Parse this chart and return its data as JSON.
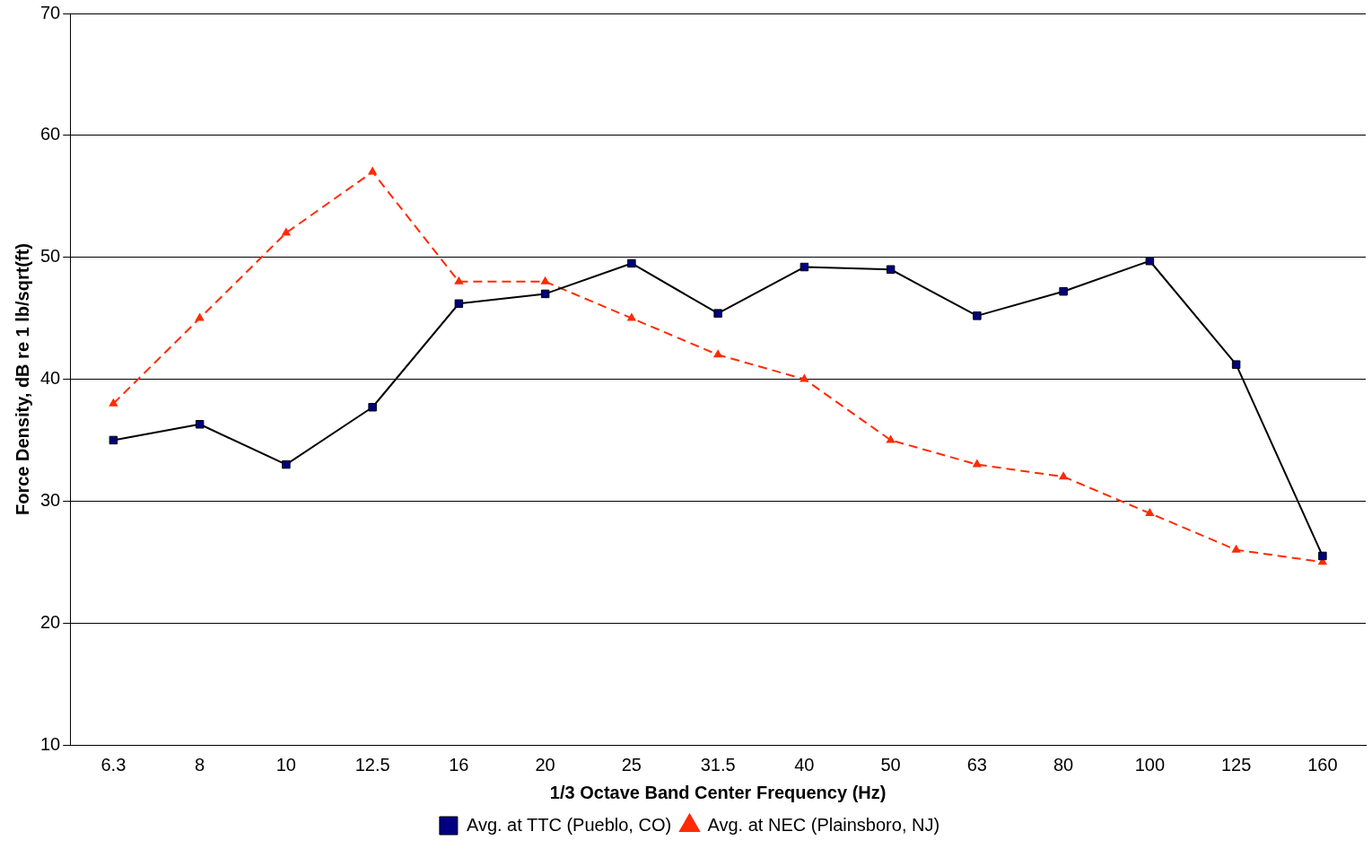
{
  "chart_data": {
    "type": "line",
    "xlabel": "1/3 Octave Band Center Frequency (Hz)",
    "ylabel": "Force Density, dB re 1 lb/sqrt(ft)",
    "categories": [
      "6.3",
      "8",
      "10",
      "12.5",
      "16",
      "20",
      "25",
      "31.5",
      "40",
      "50",
      "63",
      "80",
      "100",
      "125",
      "160"
    ],
    "series": [
      {
        "name": "Avg. at TTC (Pueblo, CO)",
        "color": "#000080",
        "marker": "square",
        "line_style": "solid",
        "values": [
          35,
          36.3,
          33,
          37.7,
          46.2,
          47,
          49.5,
          45.4,
          49.2,
          49,
          45.2,
          47.2,
          49.7,
          41.2,
          25.5
        ]
      },
      {
        "name": "Avg. at NEC (Plainsboro, NJ)",
        "color": "#ff2a00",
        "marker": "triangle",
        "line_style": "dashed",
        "values": [
          38,
          45,
          52,
          57,
          48,
          48,
          45,
          42,
          40,
          35,
          33,
          32,
          29,
          26,
          25
        ]
      }
    ],
    "ylim": [
      10,
      70
    ],
    "yticks": [
      10,
      20,
      30,
      40,
      50,
      60,
      70
    ],
    "grid": "y",
    "legend": "bottom"
  }
}
